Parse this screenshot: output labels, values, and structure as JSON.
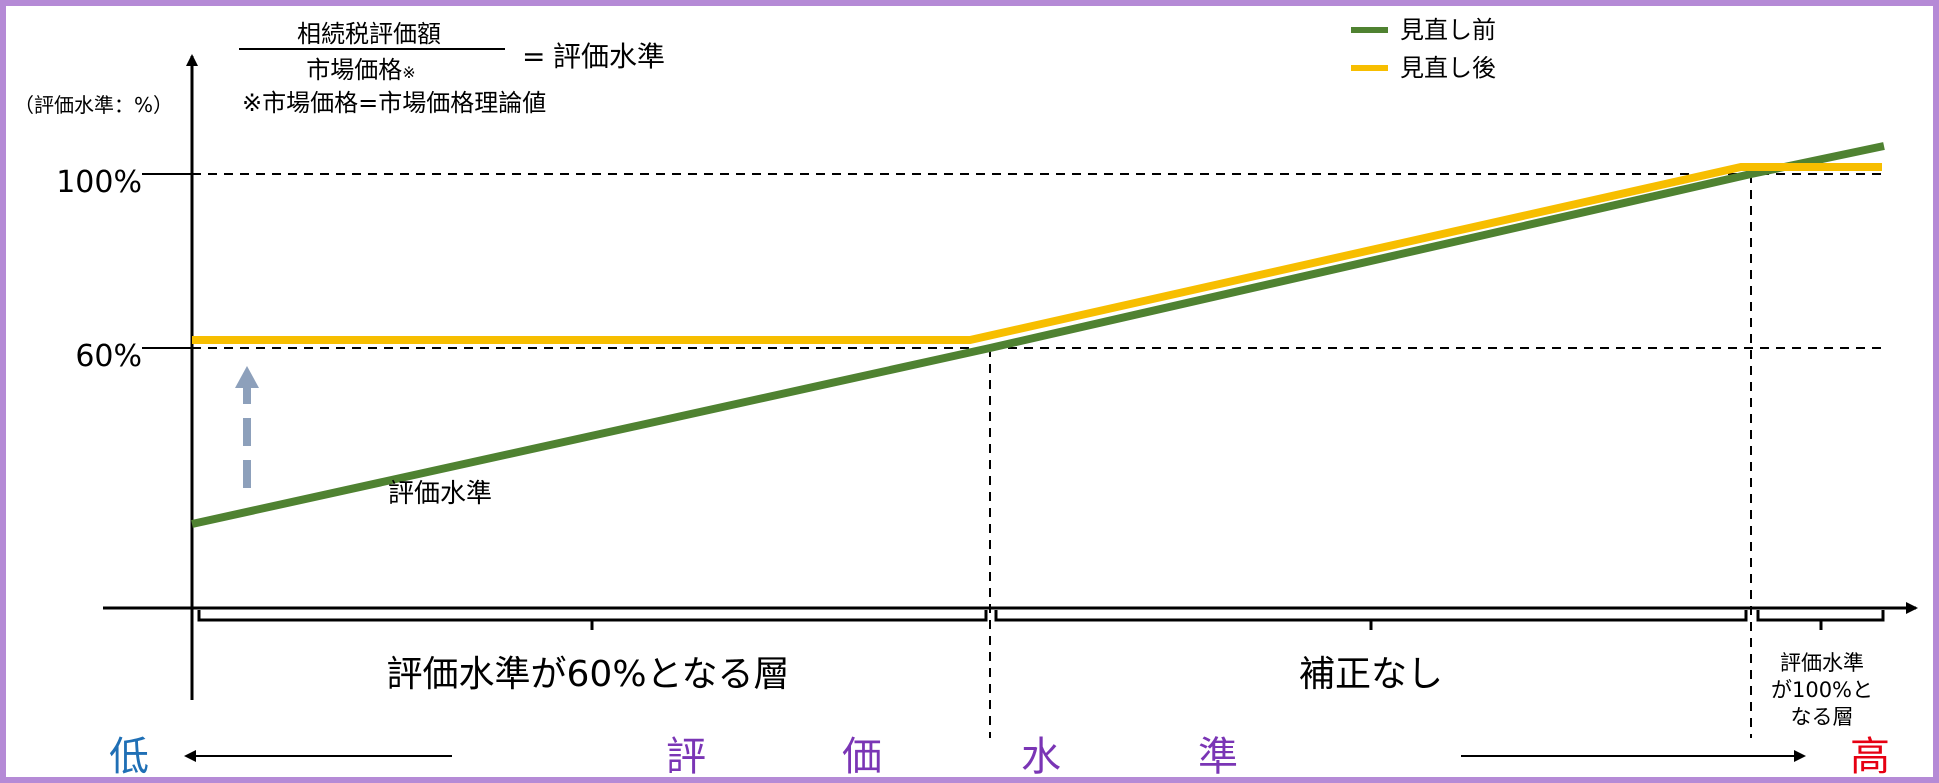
{
  "formula": {
    "numerator": "相続税評価額",
    "denominator": "市場価格",
    "denominator_mark": "※",
    "equals": "=",
    "result": "評価水準",
    "note": "※市場価格=市場価格理論値"
  },
  "y_axis": {
    "label": "（評価水準：%）",
    "ticks": [
      "100%",
      "60%"
    ]
  },
  "legend": [
    {
      "name": "見直し前",
      "color": "#4f8231"
    },
    {
      "name": "見直し後",
      "color": "#f7be00"
    }
  ],
  "lines": {
    "before": {
      "color": "#4f8231",
      "start_level_pct": 20,
      "reaches_60_at_pct_of_axis": 46,
      "reaches_100_at_pct_of_axis": 91,
      "end_level_pct": 107
    },
    "after": {
      "color": "#f7be00",
      "floor_pct": 60,
      "cap_pct": 100
    }
  },
  "arrow_up_color": "#8da0bb",
  "curve_label": "評価水準",
  "segments": [
    "評価水準が60%となる層",
    "補正なし",
    "評価水準\nが100%と\nなる層"
  ],
  "bottom_axis": {
    "low": "低",
    "high": "高",
    "chars": [
      "評",
      "価",
      "水",
      "準"
    ],
    "low_color": "#1f6fb5",
    "high_color": "#e60012",
    "chars_color": "#7a35b5"
  }
}
